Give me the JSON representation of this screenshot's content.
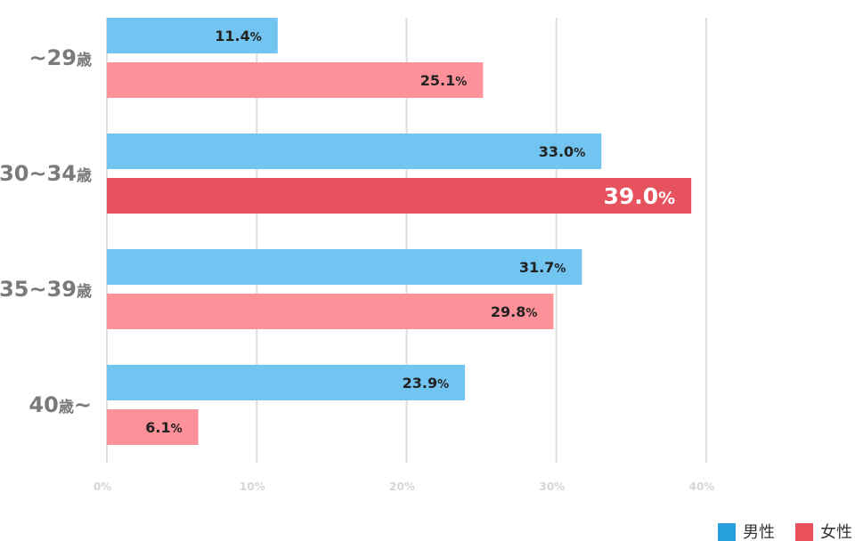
{
  "chart_data": {
    "type": "bar",
    "orientation": "horizontal",
    "categories": [
      "~29歳",
      "30~34歳",
      "35~39歳",
      "40歳~"
    ],
    "series": [
      {
        "name": "男性",
        "values": [
          11.4,
          33.0,
          31.7,
          23.9
        ],
        "labels": [
          "11.4%",
          "33.0%",
          "31.7%",
          "23.9%"
        ]
      },
      {
        "name": "女性",
        "values": [
          25.1,
          39.0,
          29.8,
          6.1
        ],
        "labels": [
          "25.1%",
          "39.0%",
          "29.8%",
          "6.1%"
        ]
      }
    ],
    "xlim": [
      0,
      40
    ],
    "ticks": [
      "0%",
      "10%",
      "20%",
      "30%",
      "40%"
    ],
    "grid": true,
    "legend": "bottom-right",
    "colors": {
      "male": "#72c5f0",
      "female_primary": "#e6525e",
      "female_secondary": "#fd9199",
      "legend_male": "#27a0dc",
      "legend_female": "#e8505c",
      "label_dark": "#222222",
      "label_light": "#ffffff"
    }
  }
}
